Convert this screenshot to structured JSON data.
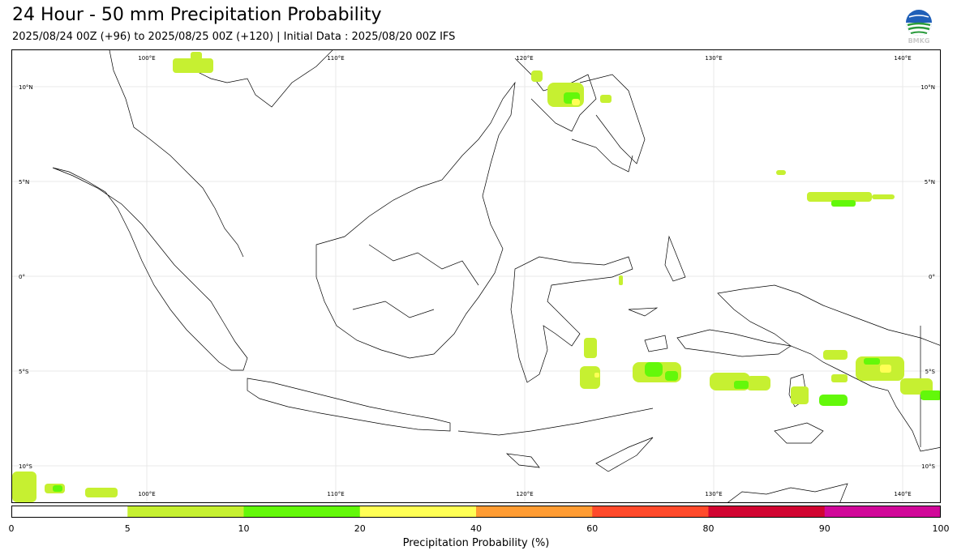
{
  "header": {
    "title": "24 Hour - 50 mm Precipitation Probability",
    "subtitle": "2025/08/24 00Z (+96) to 2025/08/25 00Z (+120) | Initial Data : 2025/08/20 00Z IFS",
    "logo_text": "BMKG"
  },
  "map": {
    "lon_labels": [
      "100°E",
      "110°E",
      "120°E",
      "130°E",
      "140°E"
    ],
    "lat_labels": [
      "10°N",
      "5°N",
      "0°",
      "5°S",
      "10°S"
    ],
    "gridlines": true,
    "coastline_color": "#000000",
    "shading_colors": {
      "low": "#c6f031",
      "mid": "#63f80a",
      "high": "#ffff55"
    }
  },
  "colorbar": {
    "title": "Precipitation Probability (%)",
    "ticks": [
      "0",
      "5",
      "10",
      "20",
      "40",
      "60",
      "80",
      "90",
      "100"
    ],
    "segments": [
      {
        "range": "0-5",
        "color": "#ffffff"
      },
      {
        "range": "5-10",
        "color": "#c6f031"
      },
      {
        "range": "10-20",
        "color": "#63f80a"
      },
      {
        "range": "20-40",
        "color": "#ffff55"
      },
      {
        "range": "40-60",
        "color": "#ff9c33"
      },
      {
        "range": "60-80",
        "color": "#ff4a2b"
      },
      {
        "range": "80-90",
        "color": "#d10431"
      },
      {
        "range": "90-100",
        "color": "#d10899"
      }
    ]
  }
}
